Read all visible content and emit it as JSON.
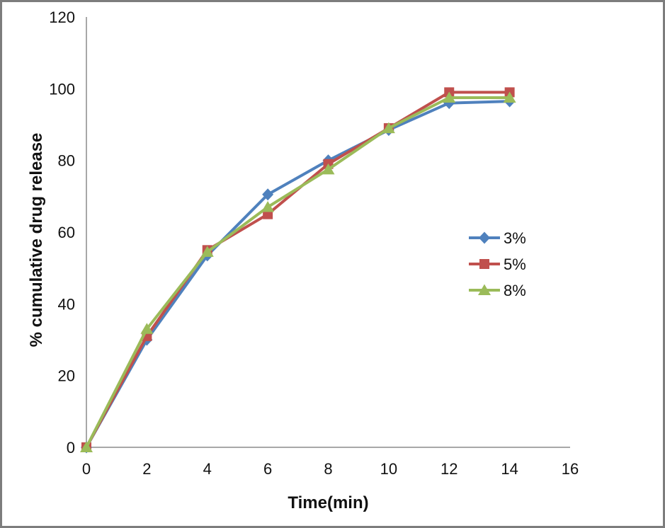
{
  "chart_data": {
    "type": "line",
    "title": "",
    "xlabel": "Time(min)",
    "ylabel": "% cumulative drug release",
    "x": [
      0,
      2,
      4,
      6,
      8,
      10,
      12,
      14
    ],
    "xlim": [
      0,
      16
    ],
    "ylim": [
      0,
      120
    ],
    "x_ticks": [
      0,
      2,
      4,
      6,
      8,
      10,
      12,
      14,
      16
    ],
    "y_ticks": [
      0,
      20,
      40,
      60,
      80,
      100,
      120
    ],
    "grid": false,
    "legend_position": "middle-right",
    "legend_entries": [
      "3%",
      "5%",
      "8%"
    ],
    "series": [
      {
        "name": "3%",
        "marker": "diamond",
        "color": "#4f81bd",
        "values": [
          0,
          30,
          53.5,
          70.5,
          80,
          88.5,
          96,
          96.5
        ]
      },
      {
        "name": "5%",
        "marker": "square",
        "color": "#c0504d",
        "values": [
          0,
          31,
          55,
          65,
          79,
          89,
          99,
          99
        ]
      },
      {
        "name": "8%",
        "marker": "triangle",
        "color": "#9bbb59",
        "values": [
          0,
          33,
          54.5,
          67,
          77.5,
          89,
          97.5,
          97.5
        ]
      }
    ],
    "axis_color": "#8c8c8c",
    "tick_label_color": "#111111",
    "background": "#ffffff",
    "frame_border_color": "#7d7d7d"
  }
}
